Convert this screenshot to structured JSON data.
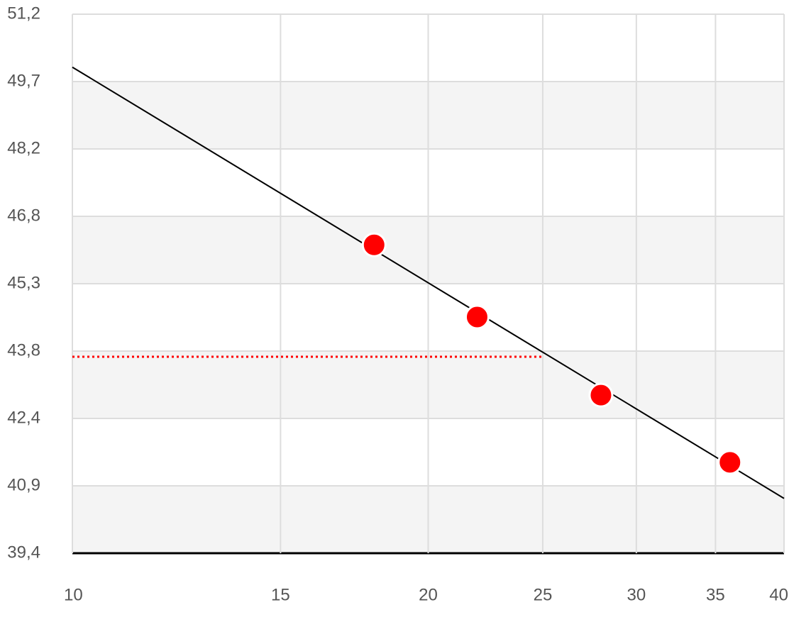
{
  "chart_data": {
    "type": "scatter",
    "xscale": "log",
    "xlim": [
      10,
      40
    ],
    "xticks": [
      10,
      15,
      20,
      25,
      30,
      35,
      40
    ],
    "ylim": [
      39.4,
      51.2
    ],
    "yticks": [
      {
        "value": 39.4,
        "label": "39,4"
      },
      {
        "value": 40.875,
        "label": "40,9"
      },
      {
        "value": 42.35,
        "label": "42,4"
      },
      {
        "value": 43.825,
        "label": "43,8"
      },
      {
        "value": 45.3,
        "label": "45,3"
      },
      {
        "value": 46.775,
        "label": "46,8"
      },
      {
        "value": 48.25,
        "label": "48,2"
      },
      {
        "value": 49.725,
        "label": "49,7"
      },
      {
        "value": 51.2,
        "label": "51,2"
      }
    ],
    "grid": true,
    "band_color": "#f4f4f4",
    "series": [
      {
        "type": "line",
        "color": "#000000",
        "dash": "solid",
        "x": [
          10,
          40
        ],
        "values": [
          50.04,
          40.6
        ]
      },
      {
        "type": "line",
        "color": "#ff0000",
        "dash": "dotted",
        "x": [
          10,
          25
        ],
        "values": [
          43.7,
          43.7
        ]
      },
      {
        "type": "scatter",
        "color": "#ff0000",
        "x": [
          18,
          22,
          28,
          36
        ],
        "values": [
          46.15,
          44.57,
          42.86,
          41.39
        ]
      }
    ]
  }
}
